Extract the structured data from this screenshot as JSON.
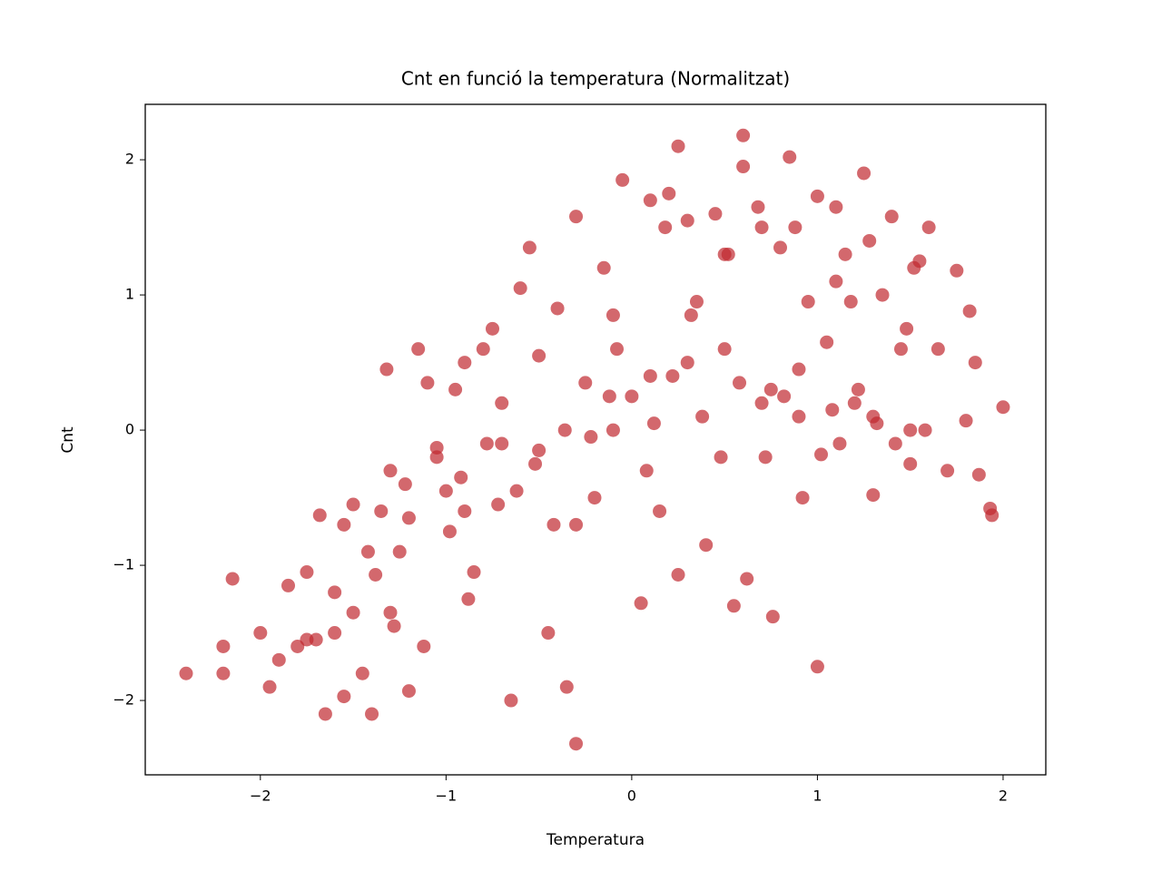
{
  "chart_data": {
    "type": "scatter",
    "title": "Cnt en funció la temperatura (Normalitzat)",
    "x_label": "Temperatura",
    "y_label": "Cnt",
    "color": "#c0282f",
    "alpha": 0.7,
    "xlim": [
      -2.62,
      2.23
    ],
    "ylim": [
      -2.55,
      2.41
    ],
    "xticks": [
      {
        "value": -2,
        "label": "−2"
      },
      {
        "value": -1,
        "label": "−1"
      },
      0,
      1,
      2
    ],
    "yticks": [
      {
        "value": -2,
        "label": "−2"
      },
      {
        "value": -1,
        "label": "−1"
      },
      0,
      1,
      2
    ],
    "x": [
      -2.4,
      -2.2,
      -2.2,
      -2.15,
      -1.95,
      -2.0,
      -1.85,
      -1.8,
      -1.75,
      -1.7,
      -1.68,
      -1.65,
      -1.6,
      -1.55,
      -1.55,
      -1.5,
      -1.45,
      -1.4,
      -1.38,
      -1.35,
      -1.3,
      -1.3,
      -1.32,
      -1.25,
      -1.2,
      -1.2,
      -1.15,
      -1.1,
      -1.05,
      -1.0,
      -0.95,
      -0.9,
      -0.85,
      -0.8,
      -0.75,
      -0.7,
      -0.65,
      -0.6,
      -0.55,
      -0.5,
      -0.45,
      -0.4,
      -0.35,
      -0.3,
      -0.3,
      -0.25,
      -0.2,
      -0.15,
      -0.1,
      -0.05,
      0.0,
      0.05,
      0.1,
      0.15,
      0.2,
      0.25,
      0.25,
      0.3,
      0.35,
      0.4,
      0.45,
      0.5,
      0.55,
      0.6,
      0.6,
      0.62,
      0.7,
      0.75,
      0.76,
      0.8,
      0.85,
      0.9,
      0.95,
      1.0,
      1.0,
      1.02,
      1.05,
      1.1,
      1.15,
      1.2,
      1.25,
      1.3,
      1.35,
      1.4,
      1.45,
      1.5,
      1.55,
      1.6,
      1.65,
      1.7,
      1.75,
      1.8,
      1.82,
      1.85,
      1.87,
      1.93,
      1.94,
      2.0,
      -1.9,
      -1.75,
      -1.6,
      -1.5,
      -1.42,
      -1.28,
      -1.22,
      -1.12,
      -1.05,
      -0.98,
      -0.92,
      -0.88,
      -0.78,
      -0.72,
      -0.62,
      -0.52,
      -0.42,
      -0.36,
      -0.22,
      -0.12,
      -0.08,
      0.08,
      0.12,
      0.18,
      0.22,
      0.32,
      0.38,
      0.48,
      0.52,
      0.58,
      0.68,
      0.72,
      0.82,
      0.88,
      0.92,
      1.08,
      1.12,
      1.18,
      1.22,
      1.28,
      1.32,
      1.42,
      1.48,
      1.52,
      1.58,
      -0.9,
      -0.7,
      -0.5,
      -0.3,
      -0.1,
      0.1,
      0.3,
      0.5,
      0.7,
      0.9,
      1.1,
      1.3,
      1.5
    ],
    "y": [
      -1.8,
      -1.6,
      -1.8,
      -1.1,
      -1.9,
      -1.5,
      -1.15,
      -1.6,
      -1.05,
      -1.55,
      -0.63,
      -2.1,
      -1.5,
      -1.97,
      -0.7,
      -0.55,
      -1.8,
      -2.1,
      -1.07,
      -0.6,
      -0.3,
      -1.35,
      0.45,
      -0.9,
      -1.93,
      -0.65,
      0.6,
      0.35,
      -0.13,
      -0.45,
      0.3,
      -0.6,
      -1.05,
      0.6,
      0.75,
      -0.1,
      -2.0,
      1.05,
      1.35,
      -0.15,
      -1.5,
      0.9,
      -1.9,
      -2.32,
      1.58,
      0.35,
      -0.5,
      1.2,
      0.0,
      1.85,
      0.25,
      -1.28,
      1.7,
      -0.6,
      1.75,
      2.1,
      -1.07,
      0.5,
      0.95,
      -0.85,
      1.6,
      0.6,
      -1.3,
      2.18,
      1.95,
      -1.1,
      1.5,
      0.3,
      -1.38,
      1.35,
      2.02,
      0.1,
      0.95,
      1.73,
      -1.75,
      -0.18,
      0.65,
      1.65,
      1.3,
      0.2,
      1.9,
      -0.48,
      1.0,
      1.58,
      0.6,
      -0.25,
      1.25,
      1.5,
      0.6,
      -0.3,
      1.18,
      0.07,
      0.88,
      0.5,
      -0.33,
      -0.58,
      -0.63,
      0.17,
      -1.7,
      -1.55,
      -1.2,
      -1.35,
      -0.9,
      -1.45,
      -0.4,
      -1.6,
      -0.2,
      -0.75,
      -0.35,
      -1.25,
      -0.1,
      -0.55,
      -0.45,
      -0.25,
      -0.7,
      0.0,
      -0.05,
      0.25,
      0.6,
      -0.3,
      0.05,
      1.5,
      0.4,
      0.85,
      0.1,
      -0.2,
      1.3,
      0.35,
      1.65,
      -0.2,
      0.25,
      1.5,
      -0.5,
      0.15,
      -0.1,
      0.95,
      0.3,
      1.4,
      0.05,
      -0.1,
      0.75,
      1.2,
      0.0,
      0.5,
      0.2,
      0.55,
      -0.7,
      0.85,
      0.4,
      1.55,
      1.3,
      0.2,
      0.45,
      1.1,
      0.1,
      0.0
    ]
  }
}
